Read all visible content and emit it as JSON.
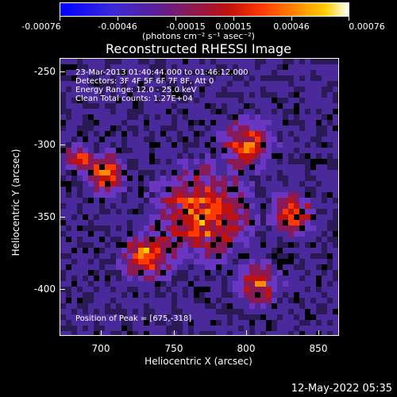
{
  "colorbar": {
    "labels": [
      "-0.00076",
      "-0.00046",
      "-0.00015",
      "0.00015",
      "0.00046",
      "0.00076"
    ],
    "units": "(photons cm⁻² s⁻¹ asec⁻²)"
  },
  "title": "Reconstructed RHESSI Image",
  "info": {
    "time_range": "23-Mar-2013 01:40:44.000 to 01:46:12.000",
    "detectors": "Detectors: 3F 4F 5F 6F 7F 8F, Att 0",
    "energy": "Energy Range: 12.0 - 25.0 keV",
    "method": "Clean    Total counts: 1.27E+04",
    "peak": "Position of Peak = [675,-318]"
  },
  "axes": {
    "xlabel": "Heliocentric X (arcsec)",
    "ylabel": "Heliocentric Y (arcsec)",
    "xticks": [
      "700",
      "750",
      "800",
      "850"
    ],
    "yticks": [
      "-250",
      "-300",
      "-350",
      "-400"
    ]
  },
  "timestamp": "12-May-2022 05:35",
  "colors": {
    "background": "#000000",
    "foreground": "#ffffff"
  }
}
